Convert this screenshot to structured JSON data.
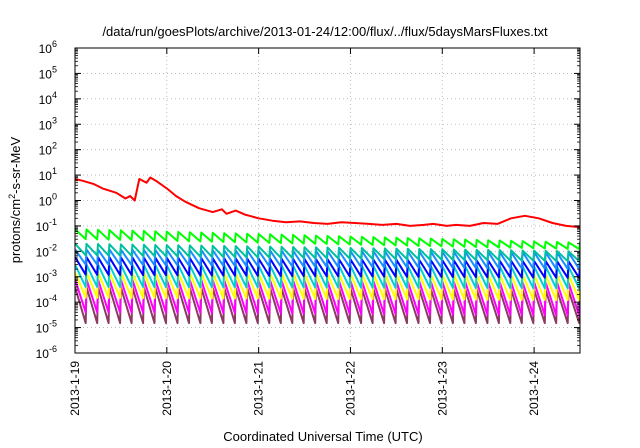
{
  "chart_data": {
    "type": "line",
    "title": "/data/run/goesPlots/archive/2013-01-24/12:00/flux/../flux/5daysMarsFluxes.txt",
    "xlabel": "Coordinated Universal Time (UTC)",
    "ylabel": "protons/cm2-s-sr-MeV",
    "ylabel_parts": {
      "base": "protons/cm",
      "sup": "2",
      "rest": "-s-sr-MeV"
    },
    "yscale": "log",
    "ylim": [
      1e-06,
      1000000.0
    ],
    "yticks": [
      {
        "exp": "-6"
      },
      {
        "exp": "-5"
      },
      {
        "exp": "-4"
      },
      {
        "exp": "-3"
      },
      {
        "exp": "-2"
      },
      {
        "exp": "-1"
      },
      {
        "exp": "0"
      },
      {
        "exp": "1"
      },
      {
        "exp": "2"
      },
      {
        "exp": "3"
      },
      {
        "exp": "4"
      },
      {
        "exp": "5"
      },
      {
        "exp": "6"
      }
    ],
    "ytick_base": "10",
    "xlim": [
      "2013-01-19",
      "2013-01-24T12:00"
    ],
    "xticks": [
      "2013-1-19",
      "2013-1-20",
      "2013-1-21",
      "2013-1-22",
      "2013-1-23",
      "2013-1-24"
    ],
    "grid": true,
    "series": [
      {
        "color": "#ff0000",
        "x": [
          0.0,
          0.08,
          0.2,
          0.3,
          0.45,
          0.55,
          0.6,
          0.65,
          0.7,
          0.78,
          0.82,
          0.88,
          1.0,
          1.1,
          1.2,
          1.35,
          1.5,
          1.6,
          1.65,
          1.75,
          1.85,
          1.9,
          2.0,
          2.15,
          2.3,
          2.45,
          2.6,
          2.75,
          2.9,
          3.05,
          3.2,
          3.35,
          3.5,
          3.65,
          3.8,
          3.9,
          4.05,
          4.15,
          4.3,
          4.45,
          4.6,
          4.75,
          4.9,
          5.05,
          5.2,
          5.35,
          5.5
        ],
        "y": [
          7,
          6,
          4.5,
          3,
          2,
          1.2,
          1.5,
          1.0,
          7,
          5,
          8,
          6,
          3,
          1.5,
          0.9,
          0.5,
          0.35,
          0.45,
          0.3,
          0.4,
          0.28,
          0.25,
          0.2,
          0.16,
          0.14,
          0.15,
          0.13,
          0.12,
          0.14,
          0.13,
          0.12,
          0.11,
          0.12,
          0.1,
          0.11,
          0.12,
          0.1,
          0.11,
          0.1,
          0.13,
          0.12,
          0.2,
          0.25,
          0.2,
          0.13,
          0.1,
          0.09
        ]
      },
      {
        "color": "#00ff00",
        "peak_start": 0.075,
        "peak_end": 0.022,
        "trough_start": 0.03,
        "trough_end": 0.012
      },
      {
        "color": "#00c0a0",
        "peak_start": 0.02,
        "peak_end": 0.01,
        "trough_start": 0.007,
        "trough_end": 0.004
      },
      {
        "color": "#1a8cff",
        "peak_start": 0.012,
        "peak_end": 0.009,
        "trough_start": 0.003,
        "trough_end": 0.002
      },
      {
        "color": "#0000ff",
        "peak_start": 0.006,
        "peak_end": 0.004,
        "trough_start": 0.0012,
        "trough_end": 0.0009
      },
      {
        "color": "#00d0d0",
        "peak_start": 0.003,
        "peak_end": 0.0025,
        "trough_start": 0.0004,
        "trough_end": 0.00035
      },
      {
        "color": "#ffff00",
        "peak_start": 0.0015,
        "peak_end": 0.0012,
        "trough_start": 0.00015,
        "trough_end": 0.00012
      },
      {
        "color": "#ff00ff",
        "peak_start": 0.0008,
        "peak_end": 0.0006,
        "trough_start": 4e-05,
        "trough_end": 3e-05
      },
      {
        "color": "#8b3a62",
        "peak_start": 0.0004,
        "peak_end": 0.0003,
        "trough_start": 1.5e-05,
        "trough_end": 1.5e-05
      }
    ],
    "oscillation_period_days": 0.125
  }
}
